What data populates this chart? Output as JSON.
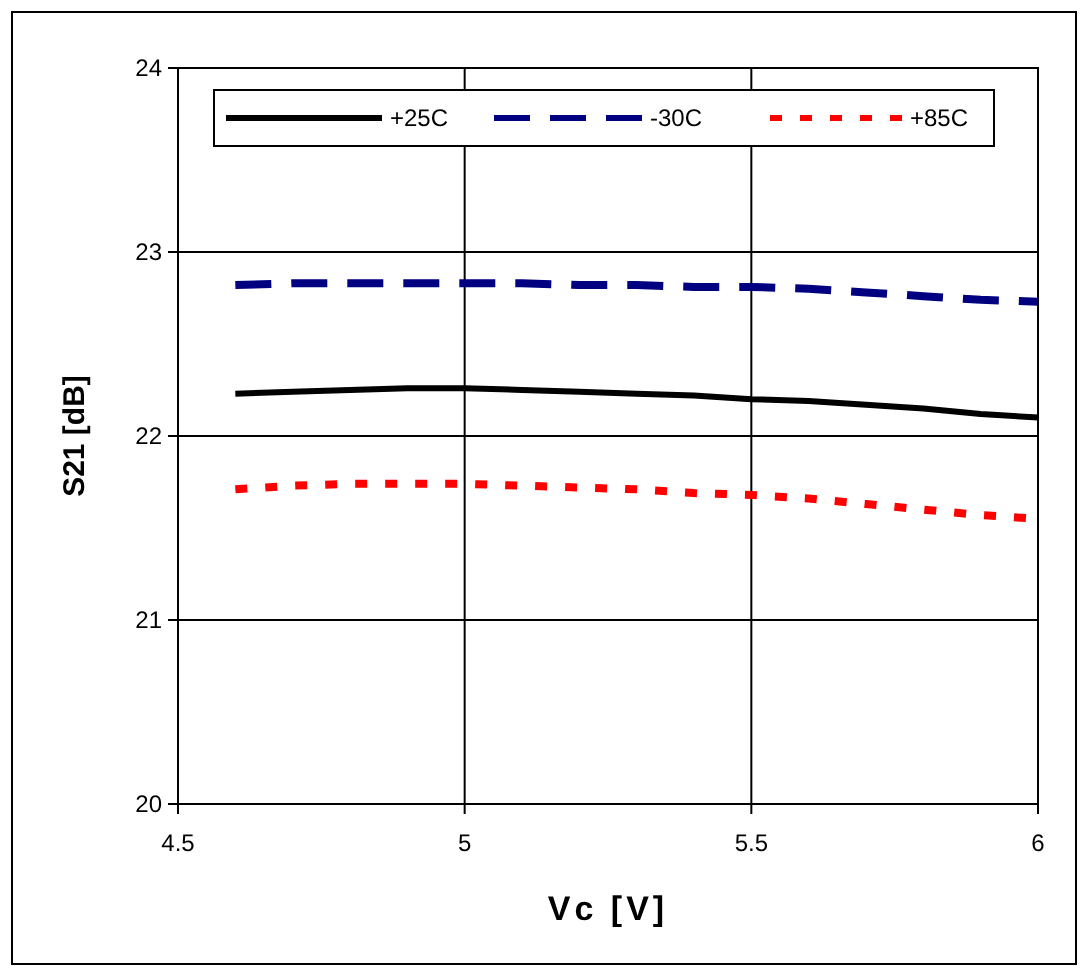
{
  "chart_data": {
    "type": "line",
    "xlabel": "Vc [V]",
    "ylabel": "S21 [dB]",
    "x": [
      4.6,
      4.7,
      4.8,
      4.9,
      5.0,
      5.1,
      5.2,
      5.3,
      5.4,
      5.5,
      5.6,
      5.7,
      5.8,
      5.9,
      6.0
    ],
    "series": [
      {
        "name": "+25C",
        "color": "#000000",
        "line_style": "solid",
        "values": [
          22.23,
          22.24,
          22.25,
          22.26,
          22.26,
          22.25,
          22.24,
          22.23,
          22.22,
          22.2,
          22.19,
          22.17,
          22.15,
          22.12,
          22.1
        ]
      },
      {
        "name": "-30C",
        "color": "#000080",
        "line_style": "dashed",
        "values": [
          22.82,
          22.83,
          22.83,
          22.83,
          22.83,
          22.83,
          22.82,
          22.82,
          22.81,
          22.81,
          22.8,
          22.78,
          22.76,
          22.74,
          22.73
        ]
      },
      {
        "name": "+85C",
        "color": "#ff0000",
        "line_style": "dotted",
        "values": [
          21.71,
          21.73,
          21.74,
          21.74,
          21.74,
          21.73,
          21.72,
          21.71,
          21.69,
          21.68,
          21.66,
          21.63,
          21.6,
          21.57,
          21.55
        ]
      }
    ],
    "xlim": [
      4.5,
      6
    ],
    "xticks": [
      4.5,
      5,
      5.5,
      6
    ],
    "ylim": [
      20,
      24
    ],
    "yticks": [
      20,
      21,
      22,
      23,
      24
    ],
    "grid": true,
    "legend": "top",
    "marker": "none"
  }
}
